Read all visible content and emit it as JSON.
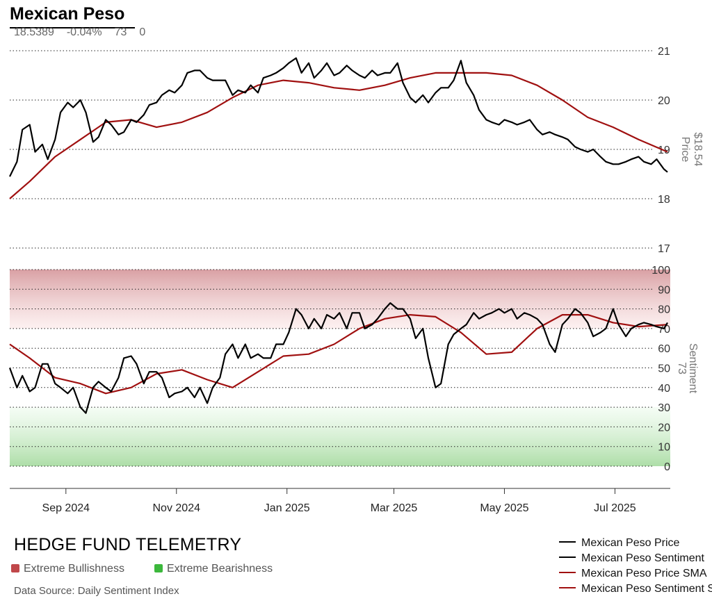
{
  "header": {
    "title": "Mexican Peso",
    "stat_price": "18.5389",
    "stat_change": "-0.04%",
    "stat_sentiment": "73",
    "stat_other": "0"
  },
  "footer": {
    "brand": "HEDGE FUND TELEMETRY",
    "extreme_bull": "Extreme Bullishness",
    "extreme_bear": "Extreme Bearishness",
    "source": "Data Source: Daily Sentiment Index"
  },
  "colors": {
    "price": "#000000",
    "sma": "#a01010",
    "bull_zone": "#d79b9f",
    "bear_zone": "#a9dca3",
    "bull_key": "#c0474a",
    "bear_key": "#3cb83c"
  },
  "legend": [
    {
      "label": "Mexican Peso Price",
      "color": "#000000"
    },
    {
      "label": "Mexican Peso Sentiment",
      "color": "#000000"
    },
    {
      "label": "Mexican Peso Price SMA",
      "color": "#a01010"
    },
    {
      "label": "Mexican Peso Sentiment SMA",
      "color": "#a01010"
    }
  ],
  "chart_data": [
    {
      "type": "line",
      "name": "Price panel",
      "ylabel": "Price",
      "current_label": "$18.54",
      "ylim": [
        17,
        21
      ],
      "yticks": [
        17,
        18,
        19,
        20,
        21
      ],
      "grid": true,
      "x_ticks": [
        "Sep 2024",
        "Nov 2024",
        "Jan 2025",
        "Mar 2025",
        "May 2025",
        "Jul 2025"
      ],
      "x_tick_dates": [
        "2024-09-01",
        "2024-11-01",
        "2025-01-01",
        "2025-03-01",
        "2025-05-01",
        "2025-07-01"
      ],
      "x_range": [
        "2024-08-01",
        "2025-07-30"
      ],
      "series": [
        {
          "name": "Mexican Peso Price",
          "x": [
            "2024-08-01",
            "2024-08-05",
            "2024-08-08",
            "2024-08-12",
            "2024-08-15",
            "2024-08-19",
            "2024-08-22",
            "2024-08-26",
            "2024-08-29",
            "2024-09-02",
            "2024-09-05",
            "2024-09-09",
            "2024-09-12",
            "2024-09-16",
            "2024-09-19",
            "2024-09-23",
            "2024-09-26",
            "2024-09-30",
            "2024-10-03",
            "2024-10-07",
            "2024-10-10",
            "2024-10-14",
            "2024-10-17",
            "2024-10-21",
            "2024-10-24",
            "2024-10-28",
            "2024-10-31",
            "2024-11-04",
            "2024-11-07",
            "2024-11-11",
            "2024-11-14",
            "2024-11-18",
            "2024-11-21",
            "2024-11-25",
            "2024-11-28",
            "2024-12-02",
            "2024-12-05",
            "2024-12-09",
            "2024-12-12",
            "2024-12-16",
            "2024-12-19",
            "2024-12-23",
            "2024-12-26",
            "2024-12-30",
            "2025-01-02",
            "2025-01-06",
            "2025-01-09",
            "2025-01-13",
            "2025-01-16",
            "2025-01-20",
            "2025-01-23",
            "2025-01-27",
            "2025-01-30",
            "2025-02-03",
            "2025-02-06",
            "2025-02-10",
            "2025-02-13",
            "2025-02-17",
            "2025-02-20",
            "2025-02-24",
            "2025-02-27",
            "2025-03-03",
            "2025-03-06",
            "2025-03-10",
            "2025-03-13",
            "2025-03-17",
            "2025-03-20",
            "2025-03-24",
            "2025-03-27",
            "2025-03-31",
            "2025-04-03",
            "2025-04-07",
            "2025-04-10",
            "2025-04-14",
            "2025-04-17",
            "2025-04-21",
            "2025-04-24",
            "2025-04-28",
            "2025-05-01",
            "2025-05-05",
            "2025-05-08",
            "2025-05-12",
            "2025-05-15",
            "2025-05-19",
            "2025-05-22",
            "2025-05-26",
            "2025-05-29",
            "2025-06-02",
            "2025-06-05",
            "2025-06-09",
            "2025-06-12",
            "2025-06-16",
            "2025-06-19",
            "2025-06-23",
            "2025-06-26",
            "2025-06-30",
            "2025-07-03",
            "2025-07-07",
            "2025-07-10",
            "2025-07-14",
            "2025-07-17",
            "2025-07-21",
            "2025-07-24",
            "2025-07-28",
            "2025-07-30"
          ],
          "values": [
            18.45,
            18.75,
            19.4,
            19.5,
            18.95,
            19.1,
            18.8,
            19.2,
            19.75,
            19.95,
            19.85,
            20.0,
            19.75,
            19.15,
            19.25,
            19.6,
            19.5,
            19.3,
            19.35,
            19.6,
            19.55,
            19.7,
            19.9,
            19.95,
            20.1,
            20.2,
            20.15,
            20.3,
            20.55,
            20.6,
            20.6,
            20.45,
            20.4,
            20.4,
            20.4,
            20.1,
            20.2,
            20.15,
            20.3,
            20.15,
            20.45,
            20.5,
            20.55,
            20.65,
            20.75,
            20.85,
            20.55,
            20.75,
            20.45,
            20.6,
            20.75,
            20.5,
            20.55,
            20.7,
            20.6,
            20.5,
            20.45,
            20.6,
            20.5,
            20.55,
            20.55,
            20.75,
            20.35,
            20.05,
            19.95,
            20.1,
            19.95,
            20.15,
            20.25,
            20.25,
            20.4,
            20.8,
            20.35,
            20.1,
            19.8,
            19.6,
            19.55,
            19.5,
            19.6,
            19.55,
            19.5,
            19.55,
            19.6,
            19.4,
            19.3,
            19.35,
            19.3,
            19.25,
            19.2,
            19.05,
            19.0,
            18.95,
            19.0,
            18.85,
            18.75,
            18.7,
            18.7,
            18.75,
            18.8,
            18.85,
            18.75,
            18.7,
            18.8,
            18.6,
            18.54
          ]
        },
        {
          "name": "Mexican Peso Price SMA",
          "x": [
            "2024-08-01",
            "2024-08-12",
            "2024-08-26",
            "2024-09-09",
            "2024-09-23",
            "2024-10-07",
            "2024-10-21",
            "2024-11-04",
            "2024-11-18",
            "2024-12-02",
            "2024-12-16",
            "2024-12-30",
            "2025-01-13",
            "2025-01-27",
            "2025-02-10",
            "2025-02-24",
            "2025-03-10",
            "2025-03-24",
            "2025-04-07",
            "2025-04-21",
            "2025-05-05",
            "2025-05-19",
            "2025-06-02",
            "2025-06-16",
            "2025-06-30",
            "2025-07-14",
            "2025-07-30"
          ],
          "values": [
            18.0,
            18.35,
            18.85,
            19.2,
            19.55,
            19.6,
            19.45,
            19.55,
            19.75,
            20.05,
            20.3,
            20.4,
            20.35,
            20.25,
            20.2,
            20.3,
            20.45,
            20.55,
            20.55,
            20.55,
            20.5,
            20.3,
            20.0,
            19.65,
            19.45,
            19.2,
            18.95
          ]
        }
      ]
    },
    {
      "type": "line",
      "name": "Sentiment panel",
      "ylabel": "Sentiment",
      "current_label": "73",
      "ylim": [
        0,
        100
      ],
      "yticks": [
        0,
        10,
        20,
        30,
        40,
        50,
        60,
        70,
        80,
        90,
        100
      ],
      "grid": true,
      "zones": [
        {
          "label": "Extreme Bullishness",
          "from": 70,
          "to": 100
        },
        {
          "label": "Extreme Bearishness",
          "from": 0,
          "to": 30
        }
      ],
      "series": [
        {
          "name": "Mexican Peso Sentiment",
          "x": [
            "2024-08-01",
            "2024-08-05",
            "2024-08-08",
            "2024-08-12",
            "2024-08-15",
            "2024-08-19",
            "2024-08-22",
            "2024-08-26",
            "2024-08-29",
            "2024-09-02",
            "2024-09-05",
            "2024-09-09",
            "2024-09-12",
            "2024-09-16",
            "2024-09-19",
            "2024-09-23",
            "2024-09-26",
            "2024-09-30",
            "2024-10-03",
            "2024-10-07",
            "2024-10-10",
            "2024-10-14",
            "2024-10-17",
            "2024-10-21",
            "2024-10-24",
            "2024-10-28",
            "2024-10-31",
            "2024-11-04",
            "2024-11-07",
            "2024-11-11",
            "2024-11-14",
            "2024-11-18",
            "2024-11-21",
            "2024-11-25",
            "2024-11-28",
            "2024-12-02",
            "2024-12-05",
            "2024-12-09",
            "2024-12-12",
            "2024-12-16",
            "2024-12-19",
            "2024-12-23",
            "2024-12-26",
            "2024-12-30",
            "2025-01-02",
            "2025-01-06",
            "2025-01-09",
            "2025-01-13",
            "2025-01-16",
            "2025-01-20",
            "2025-01-23",
            "2025-01-27",
            "2025-01-30",
            "2025-02-03",
            "2025-02-06",
            "2025-02-10",
            "2025-02-13",
            "2025-02-17",
            "2025-02-20",
            "2025-02-24",
            "2025-02-27",
            "2025-03-03",
            "2025-03-06",
            "2025-03-10",
            "2025-03-13",
            "2025-03-17",
            "2025-03-20",
            "2025-03-24",
            "2025-03-27",
            "2025-03-31",
            "2025-04-03",
            "2025-04-07",
            "2025-04-10",
            "2025-04-14",
            "2025-04-17",
            "2025-04-21",
            "2025-04-24",
            "2025-04-28",
            "2025-05-01",
            "2025-05-05",
            "2025-05-08",
            "2025-05-12",
            "2025-05-15",
            "2025-05-19",
            "2025-05-22",
            "2025-05-26",
            "2025-05-29",
            "2025-06-02",
            "2025-06-05",
            "2025-06-09",
            "2025-06-12",
            "2025-06-16",
            "2025-06-19",
            "2025-06-23",
            "2025-06-26",
            "2025-06-30",
            "2025-07-03",
            "2025-07-07",
            "2025-07-10",
            "2025-07-14",
            "2025-07-17",
            "2025-07-21",
            "2025-07-24",
            "2025-07-28",
            "2025-07-30"
          ],
          "values": [
            50,
            40,
            46,
            38,
            40,
            52,
            52,
            42,
            40,
            37,
            40,
            30,
            27,
            40,
            43,
            40,
            38,
            45,
            55,
            56,
            52,
            42,
            48,
            48,
            45,
            35,
            37,
            38,
            40,
            35,
            40,
            32,
            40,
            45,
            57,
            62,
            55,
            62,
            55,
            57,
            55,
            55,
            62,
            62,
            68,
            80,
            77,
            70,
            75,
            70,
            77,
            75,
            78,
            70,
            78,
            78,
            70,
            72,
            75,
            80,
            83,
            80,
            80,
            75,
            65,
            70,
            55,
            40,
            42,
            62,
            67,
            70,
            72,
            78,
            75,
            77,
            78,
            80,
            78,
            80,
            75,
            78,
            77,
            75,
            72,
            62,
            58,
            72,
            75,
            80,
            78,
            73,
            66,
            68,
            70,
            80,
            72,
            66,
            70,
            72,
            73,
            72,
            71,
            70,
            73
          ]
        },
        {
          "name": "Mexican Peso Sentiment SMA",
          "x": [
            "2024-08-01",
            "2024-08-12",
            "2024-08-26",
            "2024-09-09",
            "2024-09-23",
            "2024-10-07",
            "2024-10-21",
            "2024-11-04",
            "2024-11-18",
            "2024-12-02",
            "2024-12-16",
            "2024-12-30",
            "2025-01-13",
            "2025-01-27",
            "2025-02-10",
            "2025-02-24",
            "2025-03-10",
            "2025-03-24",
            "2025-04-07",
            "2025-04-21",
            "2025-05-05",
            "2025-05-19",
            "2025-06-02",
            "2025-06-16",
            "2025-06-30",
            "2025-07-14",
            "2025-07-30"
          ],
          "values": [
            62,
            55,
            45,
            42,
            37,
            40,
            47,
            49,
            44,
            40,
            48,
            56,
            57,
            62,
            70,
            75,
            77,
            76,
            68,
            57,
            58,
            70,
            77,
            77,
            73,
            71,
            72
          ]
        }
      ]
    }
  ]
}
